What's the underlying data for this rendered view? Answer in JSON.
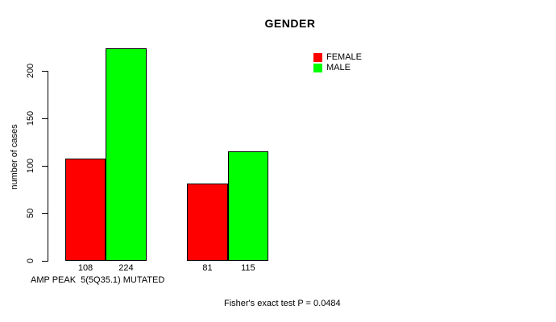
{
  "figure": {
    "background": "#ffffff",
    "text_color": "#000000"
  },
  "chart_data": {
    "type": "bar",
    "title": "GENDER",
    "ylabel": "number of cases",
    "x_annotation": "AMP PEAK  5(5Q35.1) MUTATED",
    "footnote": "Fisher's exact test P = 0.0484",
    "categories": [
      "",
      ""
    ],
    "series": [
      {
        "name": "FEMALE",
        "color": "#ff0000",
        "values": [
          108,
          81
        ]
      },
      {
        "name": "MALE",
        "color": "#00ff00",
        "values": [
          224,
          115
        ]
      }
    ],
    "value_labels_shown_under_bars": [
      [
        108,
        224
      ],
      [
        81,
        115
      ]
    ],
    "yticks": [
      0,
      50,
      100,
      150,
      200
    ],
    "ylim": [
      0,
      200
    ],
    "grid": false,
    "bar_border_color": "#000000",
    "axis_color": "#000000",
    "legend": {
      "position": "inside-top-right",
      "entries": [
        {
          "label": "FEMALE",
          "color": "#ff0000"
        },
        {
          "label": "MALE",
          "color": "#00ff00"
        }
      ]
    }
  }
}
